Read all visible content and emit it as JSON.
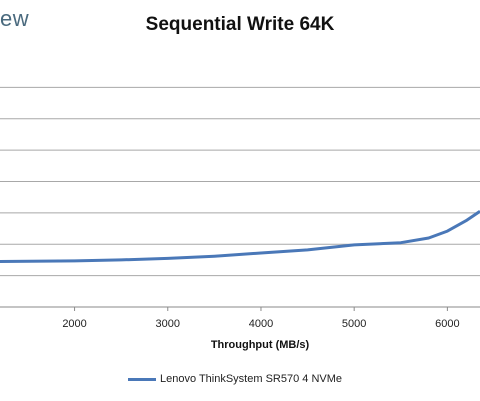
{
  "logo_text": "ew",
  "chart_data": {
    "type": "line",
    "title": "Sequential Write 64K",
    "xlabel": "Throughput (MB/s)",
    "ylabel": "",
    "xlim": [
      1200,
      6350
    ],
    "ylim": [
      0,
      8
    ],
    "x_ticks": [
      2000,
      3000,
      4000,
      5000,
      6000
    ],
    "y_grid": [
      1,
      2,
      3,
      4,
      5,
      6,
      7
    ],
    "grid": true,
    "legend": "bottom",
    "series": [
      {
        "name": "Lenovo ThinkSystem SR570 4 NVMe",
        "color": "#4a78b8",
        "x": [
          1200,
          2000,
          2500,
          3000,
          3500,
          4000,
          4500,
          5000,
          5500,
          5800,
          6000,
          6200,
          6350
        ],
        "y": [
          1.45,
          1.47,
          1.5,
          1.55,
          1.62,
          1.72,
          1.82,
          1.98,
          2.05,
          2.2,
          2.42,
          2.75,
          3.05
        ]
      }
    ]
  }
}
